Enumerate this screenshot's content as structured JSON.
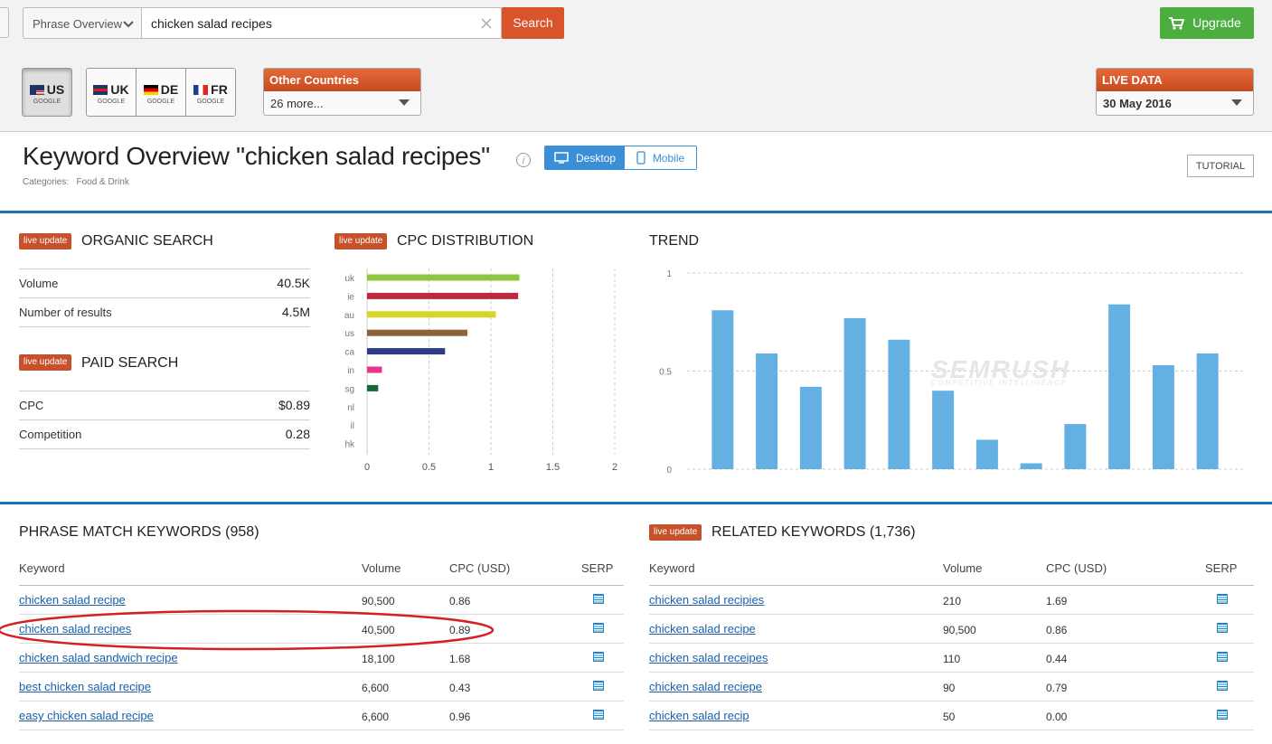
{
  "header": {
    "mode": "Phrase Overview",
    "query": "chicken salad recipes",
    "search": "Search",
    "upgrade": "Upgrade"
  },
  "databases": [
    {
      "code": "US",
      "engine": "GOOGLE"
    },
    {
      "code": "UK",
      "engine": "GOOGLE"
    },
    {
      "code": "DE",
      "engine": "GOOGLE"
    },
    {
      "code": "FR",
      "engine": "GOOGLE"
    }
  ],
  "other_countries": {
    "title": "Other Countries",
    "value": "26 more..."
  },
  "live_data": {
    "title": "LIVE DATA",
    "value": "30 May 2016"
  },
  "overview": {
    "title": "Keyword Overview \"chicken salad recipes\"",
    "categories_label": "Categories:",
    "category": "Food & Drink",
    "desktop": "Desktop",
    "mobile": "Mobile",
    "tutorial": "TUTORIAL"
  },
  "organic": {
    "badge": "live update",
    "title": "ORGANIC SEARCH",
    "rows": [
      [
        "Volume",
        "40.5K"
      ],
      [
        "Number of results",
        "4.5M"
      ]
    ]
  },
  "paid": {
    "badge": "live update",
    "title": "PAID SEARCH",
    "rows": [
      [
        "CPC",
        "$0.89"
      ],
      [
        "Competition",
        "0.28"
      ]
    ]
  },
  "chart_data": [
    {
      "type": "hbar",
      "badge": "live update",
      "title": "CPC DISTRIBUTION",
      "categories": [
        "uk",
        "ie",
        "au",
        "us",
        "ca",
        "in",
        "sg",
        "nl",
        "il",
        "hk"
      ],
      "values": [
        1.23,
        1.22,
        1.04,
        0.81,
        0.63,
        0.12,
        0.09,
        0,
        0,
        0
      ],
      "colors": [
        "#8dc63f",
        "#c0283e",
        "#d7d42b",
        "#8b6239",
        "#2e3a8c",
        "#e8358a",
        "#136b3a",
        "#999999",
        "#999999",
        "#999999"
      ],
      "xlim": [
        0,
        2
      ],
      "xticks": [
        0,
        0.5,
        1,
        1.5,
        2
      ],
      "grid": true
    },
    {
      "type": "bar",
      "title": "TREND",
      "watermark": "SEMRUSH",
      "watermark_sub": "COMPETITIVE INTELLIGENCE",
      "values": [
        0.81,
        0.59,
        0.42,
        0.77,
        0.66,
        0.4,
        0.15,
        0.03,
        0.23,
        0.84,
        0.53,
        0.59
      ],
      "color": "#64b0e3",
      "ylim": [
        0,
        1
      ],
      "yticks": [
        0,
        0.5,
        1
      ],
      "grid": true
    }
  ],
  "phrase_match": {
    "title": "PHRASE MATCH KEYWORDS (958)",
    "columns": [
      "Keyword",
      "Volume",
      "CPC (USD)",
      "SERP"
    ],
    "rows": [
      [
        "chicken salad recipe",
        "90,500",
        "0.86"
      ],
      [
        "chicken salad recipes",
        "40,500",
        "0.89"
      ],
      [
        "chicken salad sandwich recipe",
        "18,100",
        "1.68"
      ],
      [
        "best chicken salad recipe",
        "6,600",
        "0.43"
      ],
      [
        "easy chicken salad recipe",
        "6,600",
        "0.96"
      ]
    ]
  },
  "related": {
    "badge": "live update",
    "title": "RELATED KEYWORDS (1,736)",
    "columns": [
      "Keyword",
      "Volume",
      "CPC (USD)",
      "SERP"
    ],
    "rows": [
      [
        "chicken salad recipies",
        "210",
        "1.69"
      ],
      [
        "chicken salad recipe",
        "90,500",
        "0.86"
      ],
      [
        "chicken salad receipes",
        "110",
        "0.44"
      ],
      [
        "chicken salad reciepe",
        "90",
        "0.79"
      ],
      [
        "chicken salad recip",
        "50",
        "0.00"
      ]
    ]
  }
}
